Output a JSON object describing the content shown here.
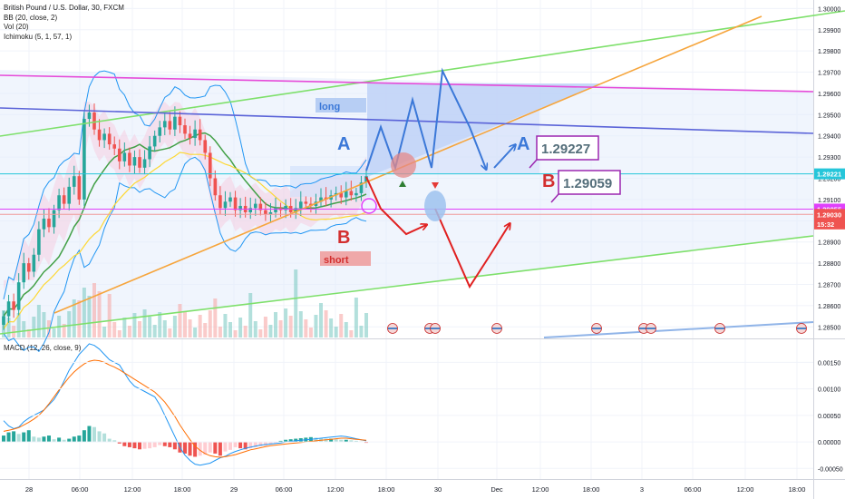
{
  "header": {
    "symbol_title": "British Pound / U.S. Dollar, 30, FXCM",
    "indicators": [
      "BB (20, close, 2)",
      "Vol (20)",
      "Ichimoku (5, 1, 57, 1)"
    ]
  },
  "chart_data": [
    {
      "type": "candlestick",
      "title": "British Pound / U.S. Dollar, 30, FXCM",
      "y_axis_ticks": [
        "1.30000",
        "1.29900",
        "1.29800",
        "1.29700",
        "1.29600",
        "1.29500",
        "1.29400",
        "1.29300",
        "1.29200",
        "1.29100",
        "1.29000",
        "1.28900",
        "1.28800",
        "1.28700",
        "1.28600",
        "1.28500"
      ],
      "ylim": [
        1.2845,
        1.3004
      ],
      "x_axis_ticks": [
        "28",
        "06:00",
        "12:00",
        "18:00",
        "29",
        "06:00",
        "12:00",
        "18:00",
        "30",
        "Dec",
        "12:00",
        "18:00",
        "3",
        "06:00",
        "12:00",
        "18:00"
      ],
      "price_labels": [
        {
          "text": "1.29221",
          "value": 1.29221,
          "color": "#26c6da"
        },
        {
          "text": "1.29055",
          "value": 1.29055,
          "color": "#e040fb"
        },
        {
          "text": "1.29030",
          "value": 1.2903,
          "color": "#ef5350"
        },
        {
          "text": "15:32",
          "value": 1.28985,
          "color": "#ef5350"
        }
      ],
      "horizontal_lines": [
        {
          "name": "cyan-level",
          "value": 1.29221,
          "color": "#26c6da"
        },
        {
          "name": "magenta-level",
          "value": 1.29055,
          "color": "#e040fb"
        },
        {
          "name": "red-price-level",
          "value": 1.2903,
          "color": "#ef9a9a"
        }
      ],
      "annotations": [
        {
          "label": "A",
          "color": "#3b78d8"
        },
        {
          "label": "A",
          "color": "#3b78d8"
        },
        {
          "label": "B",
          "color": "#d32f2f"
        },
        {
          "label": "B",
          "color": "#d32f2f"
        },
        {
          "label": "long",
          "color": "#3b78d8"
        },
        {
          "label": "short",
          "color": "#d32f2f"
        },
        {
          "label": "1.29227",
          "color": "#546e7a"
        },
        {
          "label": "1.29059",
          "color": "#546e7a"
        }
      ],
      "close_series": [
        1.2855,
        1.2862,
        1.2858,
        1.2871,
        1.288,
        1.2876,
        1.2884,
        1.2896,
        1.2901,
        1.2897,
        1.2905,
        1.2912,
        1.2908,
        1.2916,
        1.2921,
        1.291,
        1.2948,
        1.2951,
        1.2943,
        1.2938,
        1.2941,
        1.2936,
        1.2934,
        1.2928,
        1.2932,
        1.2926,
        1.293,
        1.2925,
        1.2929,
        1.2935,
        1.294,
        1.2944,
        1.2947,
        1.2943,
        1.2949,
        1.2945,
        1.2941,
        1.2939,
        1.2943,
        1.2938,
        1.2932,
        1.292,
        1.2912,
        1.2906,
        1.2909,
        1.2911,
        1.2905,
        1.2907,
        1.2904,
        1.2906,
        1.2908,
        1.2905,
        1.2903,
        1.2904,
        1.2906,
        1.2905,
        1.2907,
        1.2904,
        1.2906,
        1.2909,
        1.2908,
        1.2907,
        1.2909,
        1.2911,
        1.291,
        1.2912,
        1.2913,
        1.2911,
        1.2914,
        1.2912,
        1.2913,
        1.2918,
        1.2921
      ]
    },
    {
      "type": "macd",
      "title": "MACD (12, 26, close, 9)",
      "y_axis_ticks": [
        "0.00150",
        "0.00100",
        "0.00050",
        "0.00000",
        "-0.00050"
      ],
      "ylim": [
        -0.0007,
        0.0019
      ],
      "histogram": [
        0.00012,
        0.00018,
        0.0002,
        0.00015,
        0.00018,
        0.00022,
        0.0001,
        8e-05,
        0.0001,
        0.00012,
        5e-05,
        8e-05,
        4e-05,
        6e-05,
        0.0001,
        0.00012,
        0.00022,
        0.0003,
        0.00028,
        0.0002,
        0.00016,
        6e-05,
        3e-05,
        -3e-05,
        -8e-05,
        -0.0001,
        -0.00012,
        -0.00014,
        -0.00013,
        -0.00012,
        -0.0001,
        -6e-05,
        -8e-05,
        -0.0001,
        -0.00014,
        -0.0002,
        -0.00022,
        -0.00026,
        -0.00028,
        -0.00026,
        -0.00024,
        -0.0002,
        -0.00022,
        -0.00026,
        -0.00018,
        -0.00015,
        -0.0001,
        -0.00012,
        -0.00014,
        -0.00012,
        -0.0001,
        -8e-05,
        -7e-05,
        -4e-05,
        -2e-05,
        2e-05,
        4e-05,
        5e-05,
        6e-05,
        7e-05,
        8e-05,
        9e-05,
        8e-05,
        7e-05,
        6e-05,
        6e-05,
        5e-05,
        4e-05,
        4e-05,
        3e-05,
        2e-05,
        1e-05,
        -1e-05
      ],
      "macd_line": [
        0.0004,
        0.0003,
        0.00025,
        0.00028,
        0.00038,
        0.00045,
        0.0005,
        0.00055,
        0.0006,
        0.0007,
        0.0008,
        0.00095,
        0.00115,
        0.00135,
        0.0015,
        0.00165,
        0.00175,
        0.00185,
        0.00182,
        0.00175,
        0.00165,
        0.00155,
        0.0015,
        0.00145,
        0.0013,
        0.00115,
        0.00105,
        0.001,
        0.00095,
        0.0009,
        0.00085,
        0.0007,
        0.0005,
        0.0003,
        0.0001,
        -0.0001,
        -0.00025,
        -0.00035,
        -0.00042,
        -0.00044,
        -0.00042,
        -0.0004,
        -0.00035,
        -0.0003,
        -0.00027,
        -0.00022,
        -0.00018,
        -0.00015,
        -0.00012,
        -0.0001,
        -8e-05,
        -6e-05,
        -5e-05,
        -4e-05,
        -3e-05,
        -2e-05,
        0.0,
        1e-05,
        2e-05,
        3e-05,
        4e-05,
        5e-05,
        6e-05,
        7e-05,
        8e-05,
        9e-05,
        0.0001,
        0.00011,
        0.0001,
        8e-05,
        6e-05,
        4e-05,
        2e-05
      ],
      "signal_line": [
        0.0002,
        0.00022,
        0.00024,
        0.00027,
        0.00032,
        0.00037,
        0.00043,
        0.0005,
        0.0006,
        0.00072,
        0.00085,
        0.00098,
        0.0011,
        0.00122,
        0.00132,
        0.0014,
        0.00147,
        0.00152,
        0.00154,
        0.00153,
        0.0015,
        0.00145,
        0.00141,
        0.00136,
        0.0013,
        0.00124,
        0.00118,
        0.00112,
        0.00106,
        0.001,
        0.00094,
        0.00085,
        0.00075,
        0.00062,
        0.00048,
        0.00032,
        0.00018,
        4e-05,
        -8e-05,
        -0.00016,
        -0.00022,
        -0.00026,
        -0.00028,
        -0.00029,
        -0.00028,
        -0.00026,
        -0.00024,
        -0.00021,
        -0.00018,
        -0.00015,
        -0.00013,
        -0.00011,
        -9e-05,
        -7e-05,
        -6e-05,
        -5e-05,
        -4e-05,
        -3e-05,
        -2e-05,
        -1e-05,
        0.0,
        1e-05,
        2e-05,
        3e-05,
        4e-05,
        5e-05,
        6e-05,
        7e-05,
        7e-05,
        6e-05,
        5e-05,
        4e-05,
        3e-05
      ],
      "colors": {
        "macd": "#2196f3",
        "signal": "#ff6d00",
        "hist_up": "#26a69a",
        "hist_down": "#ef5350"
      }
    }
  ],
  "colors": {
    "up_candle": "#26a69a",
    "down_candle": "#ef5350",
    "bb": "#2196f3",
    "ichimoku_cloud": "#f8bbd0",
    "trend_green": "#7ee06b",
    "trend_orange": "#f6a53c",
    "trend_magenta": "#e64bd9",
    "trend_blue": "#5a63d8",
    "arrow_blue": "#3b78d8",
    "arrow_red": "#e02020"
  },
  "macd_legend": "MACD (12, 26, close, 9)"
}
